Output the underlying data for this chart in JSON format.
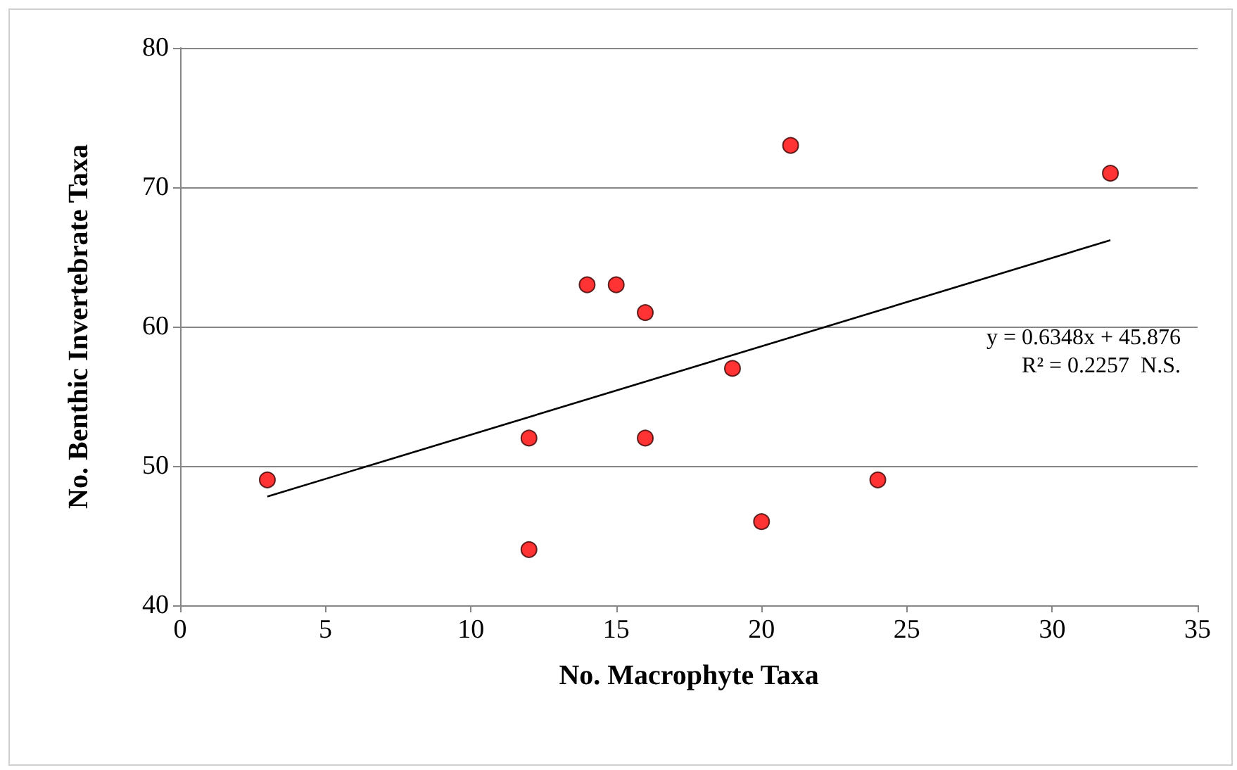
{
  "chart_data": {
    "type": "scatter",
    "xlabel": "No. Macrophyte Taxa",
    "ylabel": "No. Benthic Invertebrate Taxa",
    "series": [
      {
        "color": "#ff0000",
        "x": [
          3,
          12,
          12,
          14,
          15,
          16,
          16,
          19,
          20,
          21,
          24,
          32
        ],
        "values": [
          49,
          52,
          44,
          63,
          63,
          61,
          52,
          57,
          46,
          73,
          49,
          71
        ]
      },
      {
        "type": "line",
        "color": "#000000",
        "x": [
          3,
          32
        ],
        "values": [
          47.8,
          66.2
        ],
        "marker": "none"
      }
    ],
    "annotations": [
      "y = 0.6348x + 45.876",
      "R² = 0.2257  N.S."
    ],
    "xlim": [
      0,
      35
    ],
    "xticks": [
      0,
      5,
      10,
      15,
      20,
      25,
      30,
      35
    ],
    "ylim": [
      40,
      80
    ],
    "yticks": [
      40,
      50,
      60,
      70,
      80
    ],
    "grid": "y",
    "marker": "circle"
  }
}
